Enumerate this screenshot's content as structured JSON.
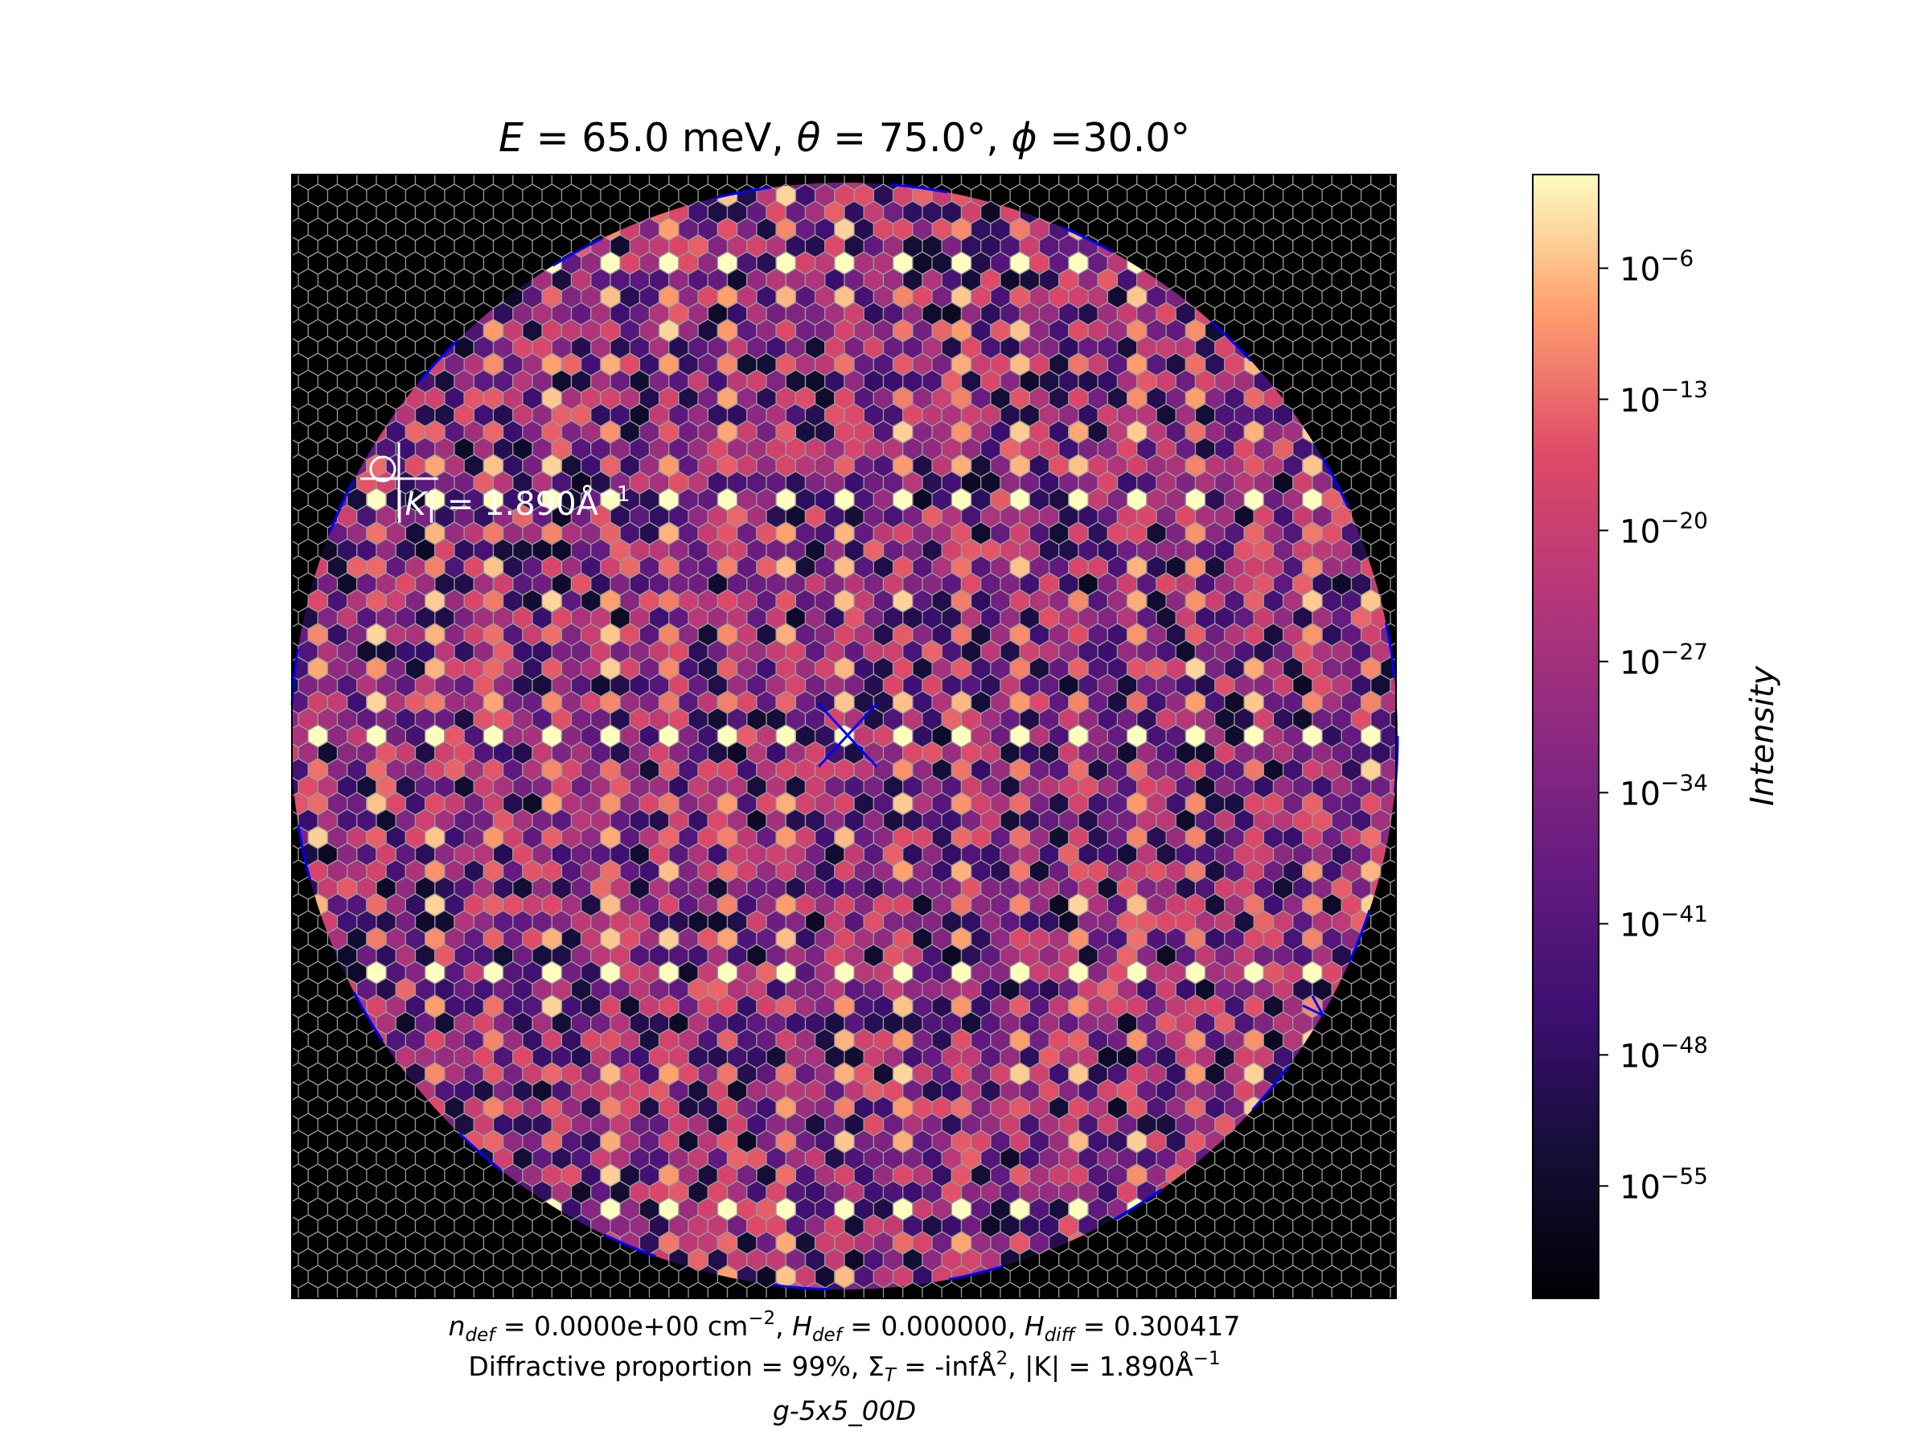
{
  "chart_data": {
    "type": "heatmap",
    "title": {
      "e_sym": "E",
      "e_text": " = 65.0 meV, ",
      "theta_sym": "θ",
      "theta_text": " = 75.0°, ",
      "phi_sym": "ϕ",
      "phi_text": " =30.0°"
    },
    "annotation": {
      "k_prefix": "|",
      "k_sym": "K",
      "k_suffix": "| = 1.890Å",
      "k_sup": "−1"
    },
    "footer": {
      "line1": {
        "n_sym": "n",
        "n_sub": "def",
        "n_val": " = 0.0000e+00 cm",
        "n_sup": "−2",
        "hdef_sym": "H",
        "hdef_sub": "def",
        "hdef_val": " = 0.000000, ",
        "hdiff_sym": "H",
        "hdiff_sub": "diff",
        "hdiff_val": " = 0.300417"
      },
      "line2": {
        "prefix": "Diffractive proportion = 99%, ",
        "sigma_sym": "Σ",
        "sigma_sub": "T",
        "sigma_val": " = -infÅ",
        "sigma_sup": "2",
        "k_text": ", |K| = 1.890Å",
        "k_sup": "−1"
      },
      "line3": "g-5x5_00D"
    },
    "colorbar": {
      "label": "Intensity",
      "scale": "log",
      "range_log10": [
        -61,
        -1
      ],
      "ticks": [
        {
          "base": "10",
          "exp": "−6",
          "log10": -6
        },
        {
          "base": "10",
          "exp": "−13",
          "log10": -13
        },
        {
          "base": "10",
          "exp": "−20",
          "log10": -20
        },
        {
          "base": "10",
          "exp": "−27",
          "log10": -27
        },
        {
          "base": "10",
          "exp": "−34",
          "log10": -34
        },
        {
          "base": "10",
          "exp": "−41",
          "log10": -41
        },
        {
          "base": "10",
          "exp": "−48",
          "log10": -48
        },
        {
          "base": "10",
          "exp": "−55",
          "log10": -55
        }
      ],
      "colormap": "magma"
    },
    "lattice": "hexagonal",
    "grid_lines": true,
    "background_color": "#000000",
    "grid_line_color": "#9a9a9a",
    "marker_color": "#0000ff",
    "center_marker": "x"
  }
}
